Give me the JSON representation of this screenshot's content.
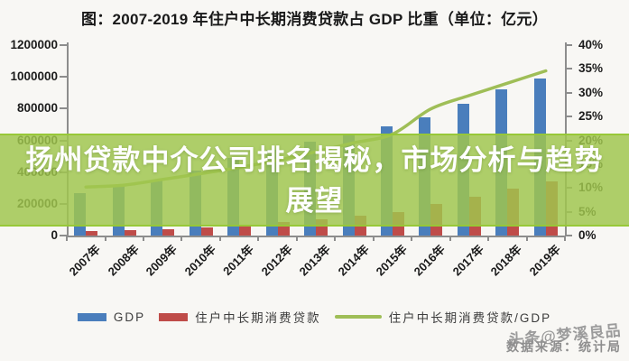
{
  "header": {
    "title": "图：2007-2019 年住户中长期消费贷款占 GDP 比重（单位：亿元）"
  },
  "banner": {
    "text": "扬州贷款中介公司排名揭秘，市场分析与趋势展望",
    "bg_color": "rgba(160,198,78,0.84)",
    "edge_color": "rgba(151,199,54,0.95)",
    "text_color": "#ffffff"
  },
  "footer": {
    "watermark": "头条@梦溪良品",
    "source": "数据来源：统计局"
  },
  "chart_data": {
    "type": "bar",
    "title": "图：2007-2019 年住户中长期消费贷款占 GDP 比重（单位：亿元）",
    "categories": [
      "2007年",
      "2008年",
      "2009年",
      "2010年",
      "2011年",
      "2012年",
      "2013年",
      "2014年",
      "2015年",
      "2016年",
      "2017年",
      "2018年",
      "2019年"
    ],
    "series": [
      {
        "name": "GDP",
        "kind": "bar",
        "axis": "left",
        "color": "#4a7ebc",
        "values": [
          270092,
          319245,
          348518,
          412119,
          487940,
          538580,
          592963,
          643563,
          688858,
          746395,
          832036,
          919281,
          990865
        ]
      },
      {
        "name": "住户中长期消费贷款",
        "kind": "bar",
        "axis": "left",
        "color": "#bf4c49",
        "values": [
          27500,
          34000,
          41000,
          53600,
          69800,
          85000,
          104000,
          125500,
          146700,
          198500,
          244600,
          294200,
          342800
        ]
      },
      {
        "name": "住户中长期消费贷款/GDP",
        "kind": "line",
        "axis": "right",
        "unit": "%",
        "color": "#9fbe57",
        "values": [
          10.2,
          10.6,
          11.8,
          13.0,
          14.3,
          15.8,
          17.6,
          19.5,
          21.3,
          26.6,
          29.4,
          32.0,
          34.6
        ]
      }
    ],
    "left_axis": {
      "min": 0,
      "max": 1200000,
      "step": 200000,
      "ticks": [
        "0",
        "200000",
        "400000",
        "600000",
        "800000",
        "1000000",
        "1200000"
      ]
    },
    "right_axis": {
      "min": 0,
      "max": 40,
      "step": 5,
      "ticks": [
        "0%",
        "5%",
        "10%",
        "15%",
        "20%",
        "25%",
        "30%",
        "35%",
        "40%"
      ]
    },
    "legend_position": "bottom",
    "grid": false
  }
}
